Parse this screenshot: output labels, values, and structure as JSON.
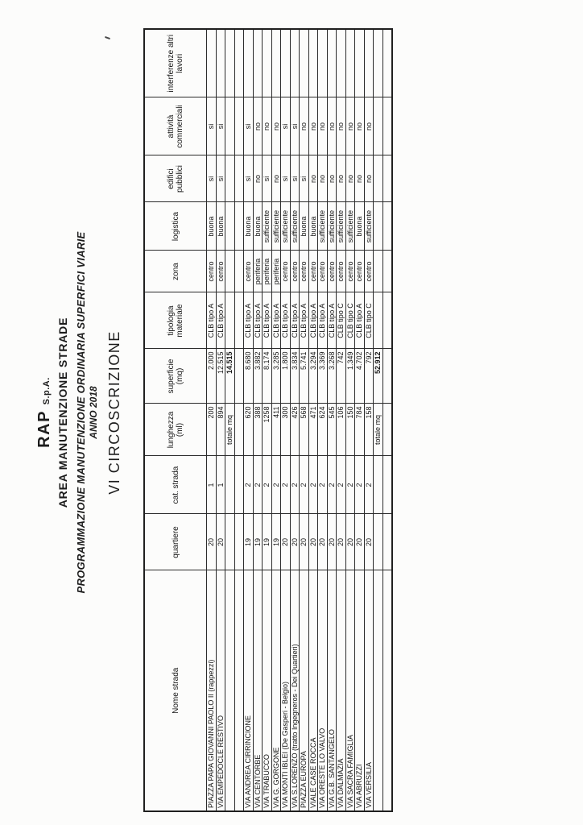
{
  "page": {
    "company_name": "RAP",
    "company_suffix": "S.p.A.",
    "department": "AREA MANUTENZIONE STRADE",
    "program_title": "PROGRAMMAZIONE MANUTENZIONE ORDINARIA SUPERFICI VIARIE",
    "year": "ANNO 2018",
    "section_title": "VI CIRCOSCRIZIONE"
  },
  "table": {
    "columns": [
      {
        "key": "nome",
        "label": "Nome strada"
      },
      {
        "key": "quartiere",
        "label": "quartiere"
      },
      {
        "key": "cat",
        "label": "cat. strada"
      },
      {
        "key": "lunghezza",
        "label": "lunghezza (ml)"
      },
      {
        "key": "superficie",
        "label": "superficie (mq)"
      },
      {
        "key": "tipologia",
        "label": "tipologia materiale"
      },
      {
        "key": "zona",
        "label": "zona"
      },
      {
        "key": "logistica",
        "label": "logistica"
      },
      {
        "key": "edifici",
        "label": "edifici pubblici"
      },
      {
        "key": "attivita",
        "label": "attività commerciali"
      },
      {
        "key": "interferenze",
        "label": "interferenze altri lavori"
      }
    ],
    "rows": [
      {
        "type": "data",
        "nome": "PIAZZA PAPA GIOVANNI PAOLO II (rappezzi)",
        "quartiere": "20",
        "cat": "1",
        "lunghezza": "200",
        "superficie": "2.000",
        "tipologia": "CLB tipo A",
        "zona": "centro",
        "logistica": "buona",
        "edifici": "si",
        "attivita": "si",
        "interferenze": ""
      },
      {
        "type": "data",
        "nome": "VIA EMPEDOCLE RESTIVO",
        "quartiere": "20",
        "cat": "1",
        "lunghezza": "894",
        "superficie": "12.515",
        "tipologia": "CLB tipo A",
        "zona": "centro",
        "logistica": "buona",
        "edifici": "si",
        "attivita": "si",
        "interferenze": ""
      },
      {
        "type": "total",
        "nome": "",
        "quartiere": "",
        "cat": "",
        "lunghezza": "totale mq",
        "superficie": "14.515",
        "tipologia": "",
        "zona": "",
        "logistica": "",
        "edifici": "",
        "attivita": "",
        "interferenze": ""
      },
      {
        "type": "empty",
        "nome": "",
        "quartiere": "",
        "cat": "",
        "lunghezza": "",
        "superficie": "",
        "tipologia": "",
        "zona": "",
        "logistica": "",
        "edifici": "",
        "attivita": "",
        "interferenze": ""
      },
      {
        "type": "data",
        "nome": "VIA ANDREA CIRRINCIONE",
        "quartiere": "19",
        "cat": "2",
        "lunghezza": "620",
        "superficie": "8.680",
        "tipologia": "CLB tipo A",
        "zona": "centro",
        "logistica": "buona",
        "edifici": "si",
        "attivita": "si",
        "interferenze": ""
      },
      {
        "type": "data",
        "nome": "VIA CENTORBE",
        "quartiere": "19",
        "cat": "2",
        "lunghezza": "388",
        "superficie": "3.882",
        "tipologia": "CLB tipo A",
        "zona": "periferia",
        "logistica": "buona",
        "edifici": "no",
        "attivita": "no",
        "interferenze": ""
      },
      {
        "type": "data",
        "nome": "VIA TRABUCCO",
        "quartiere": "19",
        "cat": "2",
        "lunghezza": "1258",
        "superficie": "8.174",
        "tipologia": "CLB tipo A",
        "zona": "periferia",
        "logistica": "sufficiente",
        "edifici": "si",
        "attivita": "no",
        "interferenze": ""
      },
      {
        "type": "data",
        "nome": "VIA G. GORGONE",
        "quartiere": "19",
        "cat": "2",
        "lunghezza": "411",
        "superficie": "3.285",
        "tipologia": "CLB tipo A",
        "zona": "periferia",
        "logistica": "sufficiente",
        "edifici": "no",
        "attivita": "no",
        "interferenze": ""
      },
      {
        "type": "data",
        "nome": "VIA MONTI IBLEI (De Gasperi - Belgio)",
        "quartiere": "20",
        "cat": "2",
        "lunghezza": "300",
        "superficie": "1.800",
        "tipologia": "CLB tipo A",
        "zona": "centro",
        "logistica": "sufficiente",
        "edifici": "si",
        "attivita": "si",
        "interferenze": ""
      },
      {
        "type": "data",
        "nome": "VIA S.LORENZO (tratto Ingegneros - Dei Quartieri)",
        "quartiere": "20",
        "cat": "2",
        "lunghezza": "426",
        "superficie": "3.834",
        "tipologia": "CLB tipo A",
        "zona": "centro",
        "logistica": "sufficiente",
        "edifici": "si",
        "attivita": "si",
        "interferenze": ""
      },
      {
        "type": "data",
        "nome": "PIAZZA EUROPA",
        "quartiere": "20",
        "cat": "2",
        "lunghezza": "568",
        "superficie": "5.741",
        "tipologia": "CLB tipo A",
        "zona": "centro",
        "logistica": "buona",
        "edifici": "si",
        "attivita": "no",
        "interferenze": ""
      },
      {
        "type": "data",
        "nome": "VIALE CASE ROCCA",
        "quartiere": "20",
        "cat": "2",
        "lunghezza": "471",
        "superficie": "3.294",
        "tipologia": "CLB tipo A",
        "zona": "centro",
        "logistica": "buona",
        "edifici": "no",
        "attivita": "no",
        "interferenze": ""
      },
      {
        "type": "data",
        "nome": "VIA ORESTE LO VALVO",
        "quartiere": "20",
        "cat": "2",
        "lunghezza": "624",
        "superficie": "3.369",
        "tipologia": "CLB tipo A",
        "zona": "centro",
        "logistica": "sufficiente",
        "edifici": "no",
        "attivita": "no",
        "interferenze": ""
      },
      {
        "type": "data",
        "nome": "VIA G.B. SANTANGELO",
        "quartiere": "20",
        "cat": "2",
        "lunghezza": "545",
        "superficie": "3.268",
        "tipologia": "CLB tipo A",
        "zona": "centro",
        "logistica": "sufficiente",
        "edifici": "no",
        "attivita": "no",
        "interferenze": ""
      },
      {
        "type": "data",
        "nome": "VIA DALMAZIA",
        "quartiere": "20",
        "cat": "2",
        "lunghezza": "106",
        "superficie": "742",
        "tipologia": "CLB tipo C",
        "zona": "centro",
        "logistica": "sufficiente",
        "edifici": "no",
        "attivita": "no",
        "interferenze": ""
      },
      {
        "type": "data",
        "nome": "VIA SACRA FAMIGLIA",
        "quartiere": "20",
        "cat": "2",
        "lunghezza": "150",
        "superficie": "1.349",
        "tipologia": "CLB tipo C",
        "zona": "centro",
        "logistica": "sufficiente",
        "edifici": "no",
        "attivita": "no",
        "interferenze": ""
      },
      {
        "type": "data",
        "nome": "VIA ABRUZZI",
        "quartiere": "20",
        "cat": "2",
        "lunghezza": "784",
        "superficie": "4.702",
        "tipologia": "CLB tipo A",
        "zona": "centro",
        "logistica": "buona",
        "edifici": "no",
        "attivita": "no",
        "interferenze": ""
      },
      {
        "type": "data",
        "nome": "VIA VERSILIA",
        "quartiere": "20",
        "cat": "2",
        "lunghezza": "158",
        "superficie": "792",
        "tipologia": "CLB tipo C",
        "zona": "centro",
        "logistica": "sufficiente",
        "edifici": "no",
        "attivita": "no",
        "interferenze": ""
      },
      {
        "type": "total",
        "nome": "",
        "quartiere": "",
        "cat": "",
        "lunghezza": "totale mq",
        "superficie": "52.912",
        "tipologia": "",
        "zona": "",
        "logistica": "",
        "edifici": "",
        "attivita": "",
        "interferenze": ""
      },
      {
        "type": "empty",
        "nome": "",
        "quartiere": "",
        "cat": "",
        "lunghezza": "",
        "superficie": "",
        "tipologia": "",
        "zona": "",
        "logistica": "",
        "edifici": "",
        "attivita": "",
        "interferenze": ""
      }
    ]
  }
}
